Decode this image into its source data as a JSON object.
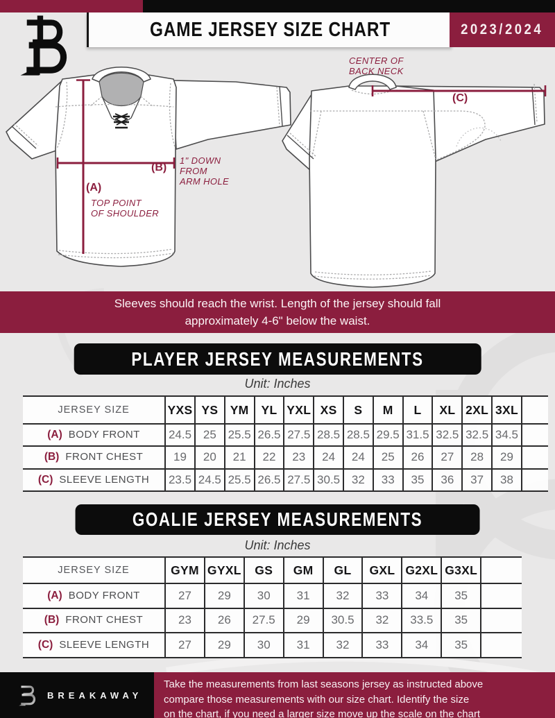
{
  "header": {
    "title": "GAME JERSEY SIZE CHART",
    "season": "2023/2024"
  },
  "diagram": {
    "front": {
      "a_tag": "(A)",
      "a_note": "TOP POINT\nOF SHOULDER",
      "b_tag": "(B)",
      "b_note": "1\" DOWN\nFROM\nARM HOLE"
    },
    "back": {
      "c_tag": "(C)",
      "neck_note": "CENTER OF\nBACK NECK"
    }
  },
  "banner": {
    "text": "Sleeves should reach the wrist. Length of the jersey should fall\napproximately 4-6\" below the waist."
  },
  "player_section": {
    "title": "PLAYER JERSEY MEASUREMENTS",
    "unit": "Unit: Inches"
  },
  "goalie_section": {
    "title": "GOALIE JERSEY MEASUREMENTS",
    "unit": "Unit: Inches"
  },
  "player_table": {
    "header": [
      "JERSEY SIZE",
      "YXS",
      "YS",
      "YM",
      "YL",
      "YXL",
      "XS",
      "S",
      "M",
      "L",
      "XL",
      "2XL",
      "3XL"
    ],
    "rows": [
      {
        "tag": "(A)",
        "label": "BODY FRONT",
        "values": [
          "24.5",
          "25",
          "25.5",
          "26.5",
          "27.5",
          "28.5",
          "28.5",
          "29.5",
          "31.5",
          "32.5",
          "32.5",
          "34.5"
        ]
      },
      {
        "tag": "(B)",
        "label": "FRONT CHEST",
        "values": [
          "19",
          "20",
          "21",
          "22",
          "23",
          "24",
          "24",
          "25",
          "26",
          "27",
          "28",
          "29"
        ]
      },
      {
        "tag": "(C)",
        "label": "SLEEVE LENGTH",
        "values": [
          "23.5",
          "24.5",
          "25.5",
          "26.5",
          "27.5",
          "30.5",
          "32",
          "33",
          "35",
          "36",
          "37",
          "38"
        ]
      }
    ]
  },
  "goalie_table": {
    "header": [
      "JERSEY SIZE",
      "GYM",
      "GYXL",
      "GS",
      "GM",
      "GL",
      "GXL",
      "G2XL",
      "G3XL"
    ],
    "rows": [
      {
        "tag": "(A)",
        "label": "BODY FRONT",
        "values": [
          "27",
          "29",
          "30",
          "31",
          "32",
          "33",
          "34",
          "35"
        ]
      },
      {
        "tag": "(B)",
        "label": "FRONT CHEST",
        "values": [
          "23",
          "26",
          "27.5",
          "29",
          "30.5",
          "32",
          "33.5",
          "35"
        ]
      },
      {
        "tag": "(C)",
        "label": "SLEEVE LENGTH",
        "values": [
          "27",
          "29",
          "30",
          "31",
          "32",
          "33",
          "34",
          "35"
        ]
      }
    ]
  },
  "footer": {
    "brand": "BREAKAWAY",
    "text": "Take the measurements from last seasons jersey as instructed above\ncompare those measurements  with our size chart. Identify the size\non the chart, if you need a larger size move up the scale on the chart"
  },
  "colors": {
    "maroon": "#8b1e3e",
    "black": "#0c0c0c",
    "background": "#e9e8e8",
    "table_line": "#2b2b2c",
    "value_gray": "#696a6d"
  }
}
